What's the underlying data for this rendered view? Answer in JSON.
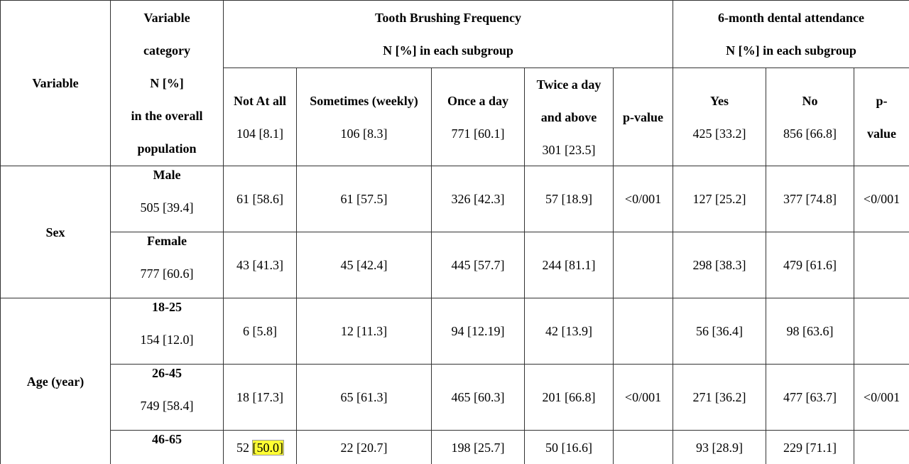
{
  "header": {
    "variable": "Variable",
    "category": [
      "Variable",
      "category",
      "N [%]",
      "in the overall",
      "population"
    ],
    "groups": [
      {
        "title": "Tooth Brushing Frequency",
        "subtitle": "N [%] in each subgroup"
      },
      {
        "title": "6-month dental attendance",
        "subtitle": "N [%] in each subgroup"
      }
    ],
    "columns": [
      {
        "label": [
          "Not At all"
        ],
        "n": "104 [8.1]"
      },
      {
        "label": [
          "Sometimes (weekly)"
        ],
        "n": "106 [8.3]"
      },
      {
        "label": [
          "Once a day"
        ],
        "n": "771 [60.1]"
      },
      {
        "label": [
          "Twice a day",
          "and above"
        ],
        "n": "301 [23.5]"
      },
      {
        "label": [
          "p-value"
        ]
      },
      {
        "label": [
          "Yes"
        ],
        "n": "425 [33.2]"
      },
      {
        "label": [
          "No"
        ],
        "n": "856 [66.8]"
      },
      {
        "label": [
          "p-",
          "value"
        ]
      }
    ]
  },
  "groups": [
    {
      "variable": "Sex",
      "rows": [
        {
          "category": "Male",
          "n": "505 [39.4]",
          "cells": [
            "61 [58.6]",
            "61 [57.5]",
            "326 [42.3]",
            "57 [18.9]",
            "<0/001",
            "127 [25.2]",
            "377 [74.8]",
            "<0/001"
          ]
        },
        {
          "category": "Female",
          "n": "777 [60.6]",
          "cells": [
            "43 [41.3]",
            "45 [42.4]",
            "445 [57.7]",
            "244 [81.1]",
            null,
            "298 [38.3]",
            "479 [61.6]",
            null
          ]
        }
      ]
    },
    {
      "variable": "Age (year)",
      "rows": [
        {
          "category": "18-25",
          "n": "154 [12.0]",
          "cells": [
            "6 [5.8]",
            "12 [11.3]",
            "94 [12.19]",
            "42 [13.9]",
            null,
            "56 [36.4]",
            "98 [63.6]",
            null
          ]
        },
        {
          "category": "26-45",
          "n": "749 [58.4]",
          "cells": [
            "18 [17.3]",
            "65 [61.3]",
            "465 [60.3]",
            "201 [66.8]",
            "<0/001",
            "271 [36.2]",
            "477 [63.7]",
            "<0/001"
          ]
        },
        {
          "category": "46-65",
          "cells": [
            {
              "text": "52",
              "highlight": "[50.0]"
            },
            "22 [20.7]",
            "198 [25.7]",
            "50 [16.6]",
            null,
            "93 [28.9]",
            "229 [71.1]",
            null
          ]
        }
      ]
    }
  ]
}
